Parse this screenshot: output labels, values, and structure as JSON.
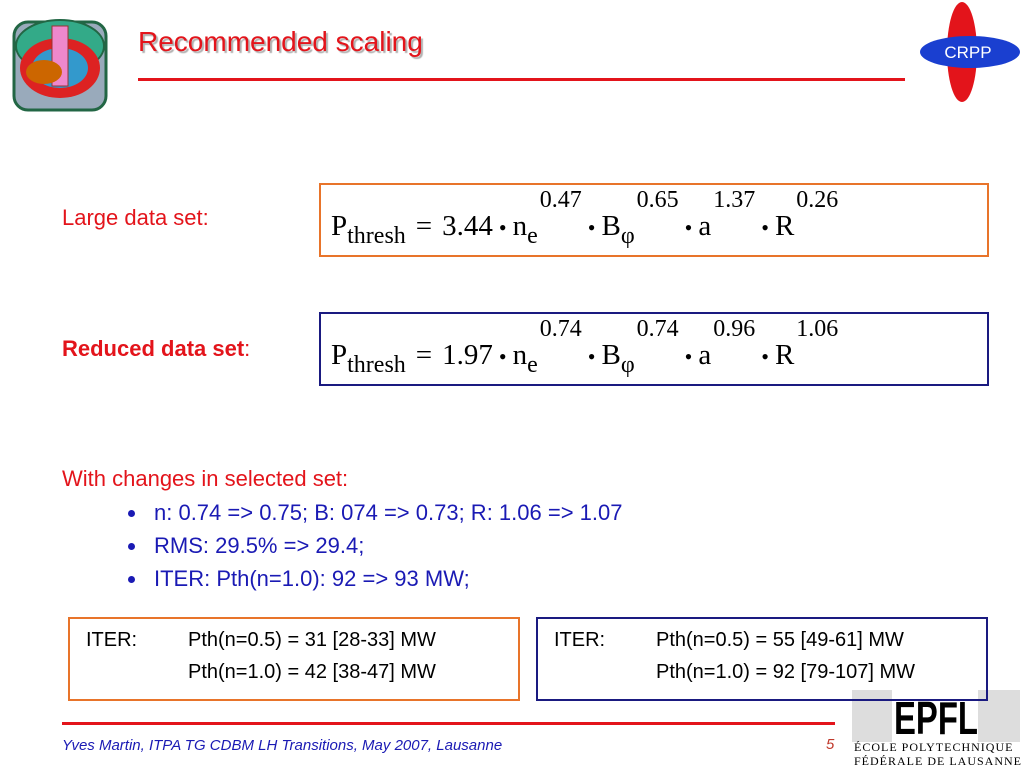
{
  "header": {
    "title": "Recommended scaling",
    "logo": "CRPP"
  },
  "formulas": [
    {
      "label": "Large data set:",
      "lhs": "P",
      "lhs_sub": "thresh",
      "equals": "=",
      "coefficient": "3.44",
      "operator": "•",
      "terms": [
        {
          "base": "n",
          "sub": "e",
          "exp": "0.47"
        },
        {
          "base": "B",
          "sub": "φ",
          "exp": "0.65"
        },
        {
          "base": "a",
          "exp": "1.37"
        },
        {
          "base": "R",
          "exp": "0.26"
        }
      ]
    },
    {
      "label": "Reduced data set",
      "label_suffix": ":",
      "lhs": "P",
      "lhs_sub": "thresh",
      "equals": "=",
      "coefficient": "1.97",
      "operator": "•",
      "terms": [
        {
          "base": "n",
          "sub": "e",
          "exp": "0.74"
        },
        {
          "base": "B",
          "sub": "φ",
          "exp": "0.74"
        },
        {
          "base": "a",
          "exp": "0.96"
        },
        {
          "base": "R",
          "exp": "1.06"
        }
      ]
    }
  ],
  "changes": {
    "heading": "With changes in selected set:",
    "items": [
      "n: 0.74 => 0.75; B: 074 => 0.73; R: 1.06 => 1.07",
      "RMS: 29.5% => 29.4;",
      "ITER: Pth(n=1.0): 92 => 93 MW;"
    ]
  },
  "iter_boxes": [
    {
      "label": "ITER:",
      "lines": [
        "Pth(n=0.5) = 31 [28-33] MW",
        "Pth(n=1.0) = 42 [38-47] MW"
      ]
    },
    {
      "label": "ITER:",
      "lines": [
        "Pth(n=0.5) = 55 [49-61] MW",
        "Pth(n=1.0) = 92 [79-107] MW"
      ]
    }
  ],
  "footer": {
    "text": "Yves Martin, ITPA TG CDBM LH Transitions, May 2007, Lausanne",
    "page": "5",
    "logo": "EPFL",
    "logo_line1": "ÉCOLE POLYTECHNIQUE",
    "logo_line2": "FÉDÉRALE DE LAUSANNE"
  }
}
